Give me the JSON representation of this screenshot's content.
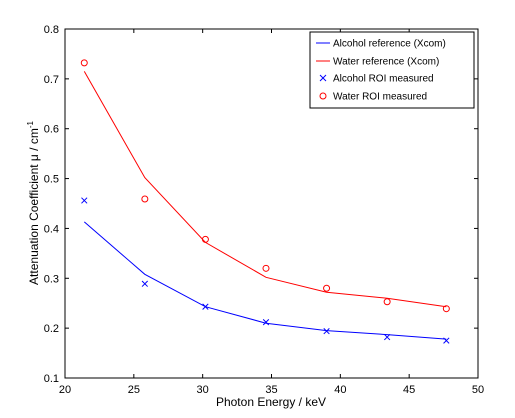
{
  "chart_data": {
    "type": "line",
    "xlabel": "Photon Energy / keV",
    "ylabel": "Attenuation Coefficient μ / cm",
    "ylabel_superscript": "-1",
    "xlim": [
      20,
      50
    ],
    "ylim": [
      0.1,
      0.8
    ],
    "xticks": [
      "20",
      "25",
      "30",
      "35",
      "40",
      "45",
      "50"
    ],
    "yticks": [
      "0.1",
      "0.2",
      "0.3",
      "0.4",
      "0.5",
      "0.6",
      "0.7",
      "0.8"
    ],
    "grid": false,
    "legend_position": "top-right",
    "series": [
      {
        "name": "Alcohol reference (Xcom)",
        "kind": "line",
        "color": "#0000ff",
        "x": [
          21.4,
          25.8,
          30.2,
          34.6,
          39.0,
          43.4,
          47.7
        ],
        "y": [
          0.413,
          0.308,
          0.243,
          0.21,
          0.195,
          0.187,
          0.178
        ]
      },
      {
        "name": "Water reference (Xcom)",
        "kind": "line",
        "color": "#ff0000",
        "x": [
          21.4,
          25.8,
          30.2,
          34.6,
          39.0,
          43.4,
          47.7
        ],
        "y": [
          0.715,
          0.502,
          0.372,
          0.302,
          0.272,
          0.26,
          0.243
        ]
      },
      {
        "name": "Alcohol ROI measured",
        "kind": "scatter",
        "marker": "x",
        "color": "#0000ff",
        "x": [
          21.4,
          25.8,
          30.2,
          34.6,
          39.0,
          43.4,
          47.7
        ],
        "y": [
          0.456,
          0.289,
          0.243,
          0.212,
          0.194,
          0.182,
          0.175
        ]
      },
      {
        "name": "Water ROI measured",
        "kind": "scatter",
        "marker": "o",
        "color": "#ff0000",
        "x": [
          21.4,
          25.8,
          30.2,
          34.6,
          39.0,
          43.4,
          47.7
        ],
        "y": [
          0.732,
          0.459,
          0.378,
          0.32,
          0.28,
          0.253,
          0.239
        ]
      }
    ]
  }
}
